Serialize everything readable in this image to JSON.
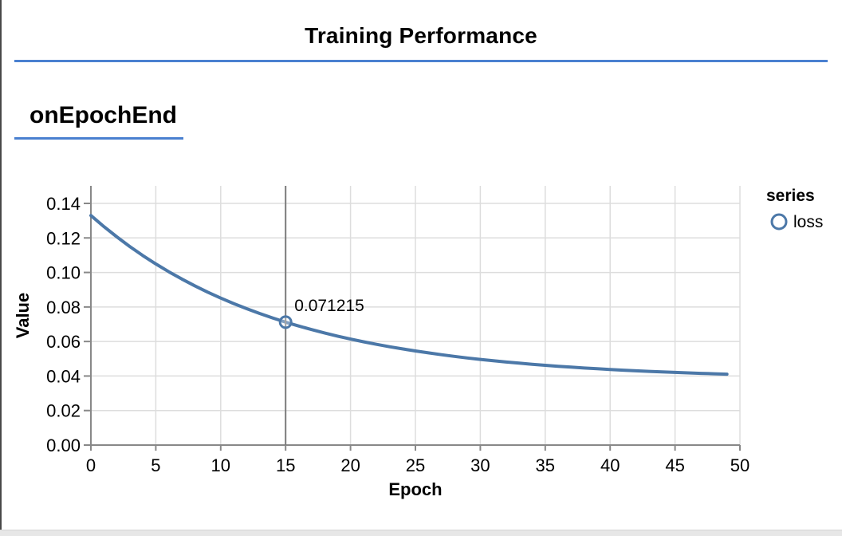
{
  "header": {
    "title": "Training Performance"
  },
  "section": {
    "heading": "onEpochEnd"
  },
  "colors": {
    "accent_rule": "#4a80d0",
    "series_line": "#4c78a8",
    "grid": "#dddddd",
    "axis": "#888888",
    "tooltip_rule": "#7b7b7b",
    "text": "#000000",
    "bottom_strip": "#e7e7e7"
  },
  "chart_data": {
    "type": "line",
    "title": "",
    "xlabel": "Epoch",
    "ylabel": "Value",
    "xlim": [
      0,
      50
    ],
    "ylim": [
      0,
      0.15
    ],
    "x_ticks": [
      0,
      5,
      10,
      15,
      20,
      25,
      30,
      35,
      40,
      45,
      50
    ],
    "y_ticks": [
      0.0,
      0.02,
      0.04,
      0.06,
      0.08,
      0.1,
      0.12,
      0.14
    ],
    "grid": true,
    "legend": {
      "position": "right",
      "title": "series",
      "entries": [
        {
          "label": "loss",
          "color": "#4c78a8",
          "symbol": "circle"
        }
      ]
    },
    "series": [
      {
        "name": "loss",
        "x": [
          0,
          1,
          2,
          3,
          4,
          5,
          6,
          7,
          8,
          9,
          10,
          11,
          12,
          13,
          14,
          15,
          16,
          17,
          18,
          19,
          20,
          21,
          22,
          23,
          24,
          25,
          26,
          27,
          28,
          29,
          30,
          31,
          32,
          33,
          34,
          35,
          36,
          37,
          38,
          39,
          40,
          41,
          42,
          43,
          44,
          45,
          46,
          47,
          48,
          49
        ],
        "values": [
          0.133,
          0.126577,
          0.120589,
          0.115006,
          0.109799,
          0.104945,
          0.10042,
          0.096199,
          0.092265,
          0.088596,
          0.085176,
          0.081986,
          0.079013,
          0.07624,
          0.073655,
          0.071215,
          0.068997,
          0.066901,
          0.064947,
          0.063125,
          0.061427,
          0.059843,
          0.058366,
          0.056989,
          0.055706,
          0.054509,
          0.053392,
          0.052352,
          0.051382,
          0.050477,
          0.049633,
          0.048847,
          0.048114,
          0.04743,
          0.046792,
          0.046198,
          0.045644,
          0.045127,
          0.044645,
          0.044196,
          0.043777,
          0.043386,
          0.043022,
          0.042683,
          0.042366,
          0.042071,
          0.041796,
          0.041539,
          0.0413,
          0.041077
        ]
      }
    ],
    "tooltip": {
      "series": "loss",
      "epoch": 15,
      "value": 0.071215,
      "label": "0.071215"
    }
  }
}
